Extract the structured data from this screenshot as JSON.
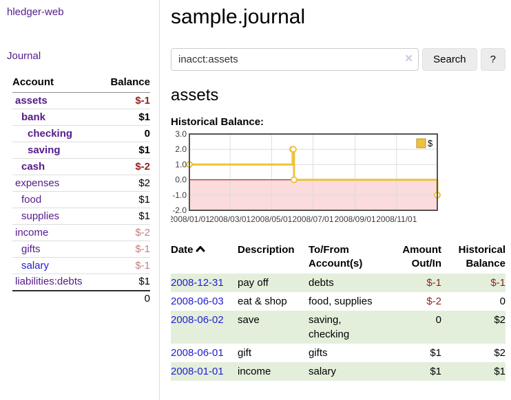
{
  "app": {
    "title": "hledger-web"
  },
  "sidebar": {
    "journal_link": "Journal",
    "accounts": {
      "header_account": "Account",
      "header_balance": "Balance",
      "rows": [
        {
          "name": "assets",
          "balance": "$-1",
          "depth": 1,
          "bold": true,
          "link": "purple",
          "balance_class": "neg"
        },
        {
          "name": "bank",
          "balance": "$1",
          "depth": 2,
          "bold": true,
          "link": "purple",
          "balance_class": ""
        },
        {
          "name": "checking",
          "balance": "0",
          "depth": 3,
          "bold": true,
          "link": "purple",
          "balance_class": ""
        },
        {
          "name": "saving",
          "balance": "$1",
          "depth": 3,
          "bold": true,
          "link": "purple",
          "balance_class": ""
        },
        {
          "name": "cash",
          "balance": "$-2",
          "depth": 2,
          "bold": true,
          "link": "purple",
          "balance_class": "neg"
        },
        {
          "name": "expenses",
          "balance": "$2",
          "depth": 1,
          "bold": false,
          "link": "purple",
          "balance_class": ""
        },
        {
          "name": "food",
          "balance": "$1",
          "depth": 2,
          "bold": false,
          "link": "purple",
          "balance_class": ""
        },
        {
          "name": "supplies",
          "balance": "$1",
          "depth": 2,
          "bold": false,
          "link": "purple",
          "balance_class": ""
        },
        {
          "name": "income",
          "balance": "$-2",
          "depth": 1,
          "bold": false,
          "link": "purple",
          "balance_class": "neg-dim"
        },
        {
          "name": "gifts",
          "balance": "$-1",
          "depth": 2,
          "bold": false,
          "link": "purple",
          "balance_class": "neg-dim"
        },
        {
          "name": "salary",
          "balance": "$-1",
          "depth": 2,
          "bold": false,
          "link": "blue",
          "balance_class": "neg-dim"
        },
        {
          "name": "liabilities:debts",
          "balance": "$1",
          "depth": 1,
          "bold": false,
          "link": "purple",
          "balance_class": ""
        }
      ],
      "total": "0"
    }
  },
  "main": {
    "title": "sample.journal",
    "search": {
      "value": "inacct:assets",
      "clear_icon": "×",
      "button_label": "Search",
      "help_label": "?"
    },
    "account_heading": "assets"
  },
  "chart_data": {
    "type": "line",
    "title": "Historical Balance:",
    "step": true,
    "series": [
      {
        "name": "$",
        "color": "#edc240",
        "points": [
          {
            "x": "2008/01/01",
            "y": 1
          },
          {
            "x": "2008/06/01",
            "y": 2
          },
          {
            "x": "2008/06/02",
            "y": 2
          },
          {
            "x": "2008/06/03",
            "y": 0
          },
          {
            "x": "2008/12/31",
            "y": -1
          }
        ]
      }
    ],
    "x_range": [
      "2008/01/01",
      "2008/12/31"
    ],
    "ylim": [
      -2,
      3
    ],
    "y_ticks": [
      3,
      2,
      1,
      0,
      -1,
      -2
    ],
    "x_ticks": [
      "2008/01/01",
      "2008/03/01",
      "2008/05/01",
      "2008/07/01",
      "2008/09/01",
      "2008/11/01"
    ],
    "grid": true,
    "legend_position": "top-right",
    "legend_label": "$",
    "colors": {
      "line": "#edc240",
      "marker_fill": "#ffffff",
      "negative_region": "#fbdbdb",
      "zero_line": "#8b0000",
      "gridline": "#dcdcdc",
      "border": "#545454",
      "tick_text": "#3c3c3c"
    }
  },
  "transactions": {
    "headers": [
      "Date",
      "Description",
      "To/From\nAccount(s)",
      "Amount\nOut/In",
      "Historical\nBalance"
    ],
    "sort": {
      "column": "Date",
      "direction": "ascending"
    },
    "rows": [
      {
        "date": "2008-12-31",
        "description": "pay off",
        "accounts": "debts",
        "amount": "$-1",
        "balance": "$-1"
      },
      {
        "date": "2008-06-03",
        "description": "eat & shop",
        "accounts": "food, supplies",
        "amount": "$-2",
        "balance": "0"
      },
      {
        "date": "2008-06-02",
        "description": "save",
        "accounts": "saving,\nchecking",
        "amount": "0",
        "balance": "$2"
      },
      {
        "date": "2008-06-01",
        "description": "gift",
        "accounts": "gifts",
        "amount": "$1",
        "balance": "$2"
      },
      {
        "date": "2008-01-01",
        "description": "income",
        "accounts": "salary",
        "amount": "$1",
        "balance": "$1"
      }
    ]
  },
  "colors": {
    "accent_purple": "#551a8b",
    "link_blue": "#2020d0",
    "negative_red": "#941f1f",
    "negative_dim_red": "#c47d7d",
    "row_stripe_green": "#e3efdb",
    "sidebar_divider": "#dddddd"
  }
}
